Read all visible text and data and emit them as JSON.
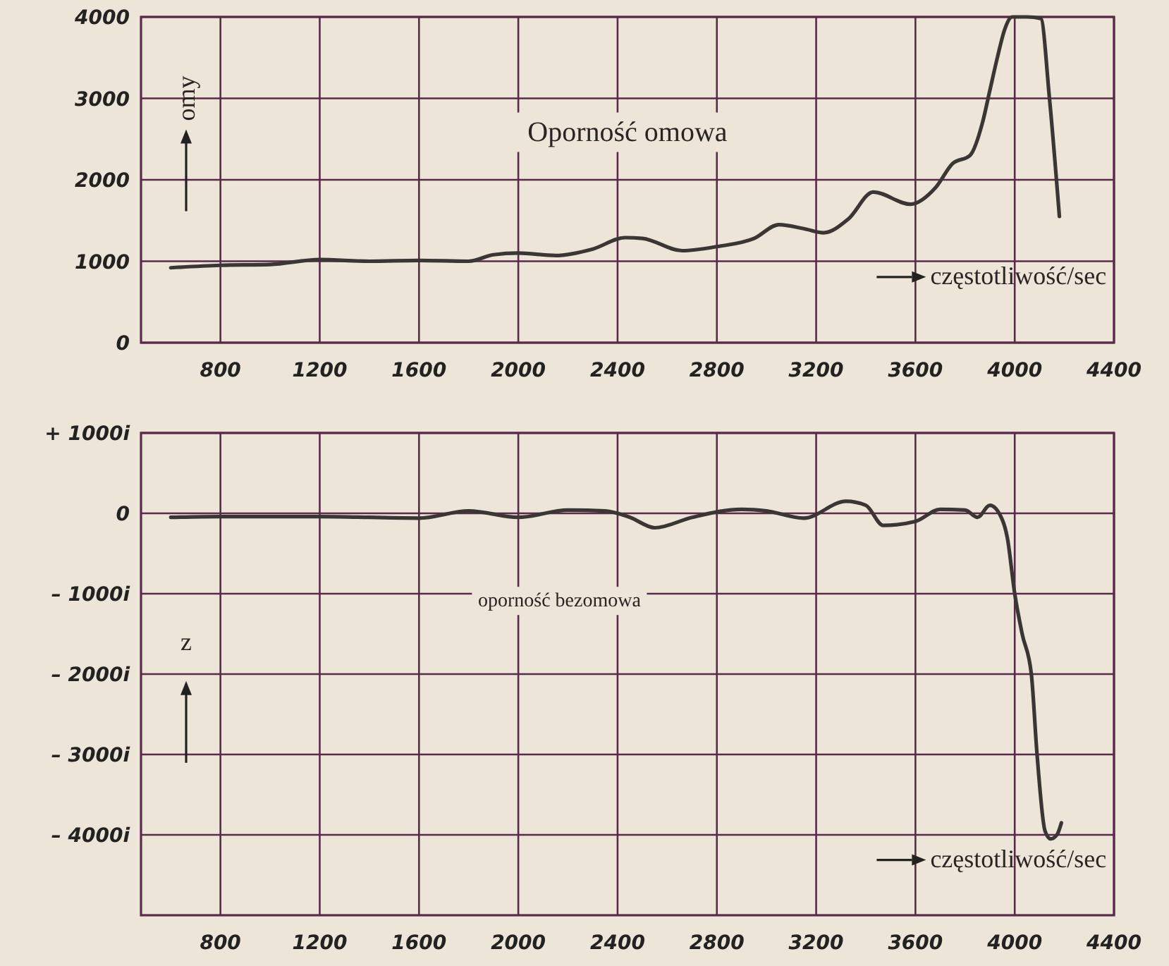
{
  "chart_data": [
    {
      "type": "line",
      "title": "Oporność omowa",
      "xlabel": "częstotliwość/sec",
      "ylabel": "omy",
      "xlim": [
        480,
        4400
      ],
      "xticks": [
        800,
        1200,
        1600,
        2000,
        2400,
        2800,
        3200,
        3600,
        4000,
        4400
      ],
      "ylim": [
        0,
        4000
      ],
      "yticks": [
        0,
        1000,
        2000,
        3000,
        4000
      ],
      "grid": true,
      "x": [
        600,
        800,
        1000,
        1200,
        1400,
        1600,
        1800,
        1900,
        2000,
        2150,
        2300,
        2430,
        2500,
        2660,
        2800,
        2950,
        3050,
        3150,
        3230,
        3330,
        3430,
        3580,
        3680,
        3750,
        3820,
        3870,
        3900,
        3930,
        3960,
        3990,
        4050,
        4105,
        4140,
        4180
      ],
      "series": [
        {
          "color": "#3a3636",
          "values": [
            920,
            950,
            960,
            1020,
            1000,
            1010,
            1000,
            1080,
            1100,
            1070,
            1150,
            1290,
            1280,
            1130,
            1180,
            1280,
            1450,
            1400,
            1350,
            1520,
            1850,
            1700,
            1900,
            2200,
            2300,
            2700,
            3100,
            3500,
            3850,
            4000,
            4000,
            3980,
            3000,
            1550
          ]
        }
      ]
    },
    {
      "type": "line",
      "title": "oporność bezomowa",
      "xlabel": "częstotliwość/sec",
      "ylabel": "z",
      "xlim": [
        480,
        4400
      ],
      "xticks": [
        800,
        1200,
        1600,
        2000,
        2400,
        2800,
        3200,
        3600,
        4000,
        4400
      ],
      "ylim": [
        -5000,
        1000
      ],
      "yticks": [
        {
          "value": 1000,
          "label": "+ 1000i"
        },
        0,
        {
          "value": -1000,
          "label": "– 1000i"
        },
        {
          "value": -2000,
          "label": "– 2000i"
        },
        {
          "value": -3000,
          "label": "– 3000i"
        },
        {
          "value": -4000,
          "label": "– 4000i"
        }
      ],
      "grid": true,
      "x": [
        600,
        800,
        1200,
        1600,
        1800,
        2000,
        2200,
        2350,
        2450,
        2550,
        2700,
        2900,
        3000,
        3150,
        3320,
        3400,
        3470,
        3600,
        3700,
        3800,
        3850,
        3900,
        3950,
        3970,
        4000,
        4030,
        4067,
        4090,
        4122,
        4145,
        4170,
        4188
      ],
      "series": [
        {
          "color": "#3a3636",
          "values": [
            -50,
            -40,
            -40,
            -60,
            30,
            -50,
            40,
            30,
            -50,
            -180,
            -50,
            50,
            30,
            -60,
            150,
            100,
            -150,
            -100,
            50,
            40,
            -50,
            100,
            -80,
            -300,
            -1000,
            -1500,
            -2000,
            -3000,
            -3950,
            -4050,
            -4000,
            -3850
          ]
        }
      ]
    }
  ]
}
